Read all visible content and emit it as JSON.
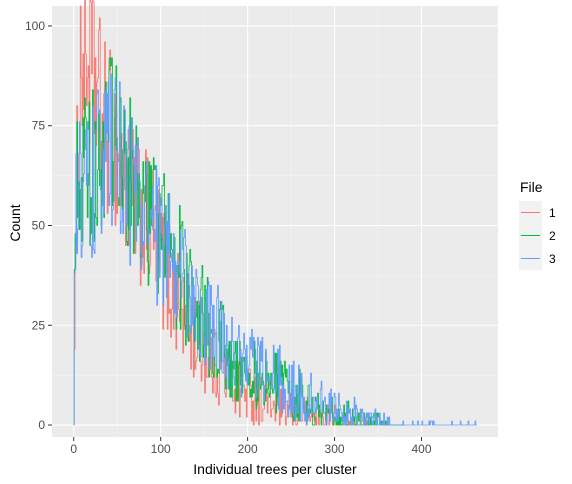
{
  "chart_data": {
    "type": "line",
    "xlabel": "Individual trees per cluster",
    "ylabel": "Count",
    "xlim": [
      -25,
      488
    ],
    "ylim": [
      -3,
      105
    ],
    "xticks": [
      0,
      100,
      200,
      300,
      400
    ],
    "yticks": [
      0,
      25,
      50,
      75,
      100
    ],
    "grid": true,
    "legend": {
      "title": "File",
      "position": "right"
    },
    "series": [
      {
        "name": "1",
        "color": "#F8766D",
        "points": [
          [
            0,
            0
          ],
          [
            1,
            31
          ],
          [
            2,
            40
          ],
          [
            5,
            72
          ],
          [
            8,
            90
          ],
          [
            10,
            94
          ],
          [
            12,
            88
          ],
          [
            15,
            92
          ],
          [
            20,
            88
          ],
          [
            25,
            85
          ],
          [
            30,
            80
          ],
          [
            35,
            75
          ],
          [
            40,
            74
          ],
          [
            45,
            72
          ],
          [
            50,
            67
          ],
          [
            55,
            63
          ],
          [
            60,
            60
          ],
          [
            70,
            55
          ],
          [
            80,
            52
          ],
          [
            90,
            48
          ],
          [
            100,
            42
          ],
          [
            110,
            36
          ],
          [
            120,
            30
          ],
          [
            130,
            26
          ],
          [
            140,
            22
          ],
          [
            150,
            19
          ],
          [
            160,
            16
          ],
          [
            170,
            14
          ],
          [
            180,
            11
          ],
          [
            190,
            9
          ],
          [
            200,
            8
          ],
          [
            210,
            7
          ],
          [
            220,
            6
          ],
          [
            230,
            5
          ],
          [
            240,
            4
          ],
          [
            250,
            4
          ],
          [
            260,
            3
          ],
          [
            270,
            3
          ],
          [
            280,
            2
          ],
          [
            290,
            2
          ],
          [
            300,
            2
          ],
          [
            310,
            1
          ],
          [
            320,
            1
          ],
          [
            330,
            1
          ],
          [
            340,
            0
          ]
        ]
      },
      {
        "name": "2",
        "color": "#00BA38",
        "points": [
          [
            0,
            0
          ],
          [
            1,
            35
          ],
          [
            3,
            62
          ],
          [
            6,
            66
          ],
          [
            10,
            64
          ],
          [
            15,
            62
          ],
          [
            20,
            63
          ],
          [
            25,
            65
          ],
          [
            30,
            66
          ],
          [
            35,
            68
          ],
          [
            40,
            70
          ],
          [
            45,
            71
          ],
          [
            50,
            70
          ],
          [
            55,
            68
          ],
          [
            60,
            65
          ],
          [
            70,
            60
          ],
          [
            80,
            55
          ],
          [
            90,
            52
          ],
          [
            100,
            48
          ],
          [
            110,
            44
          ],
          [
            120,
            40
          ],
          [
            130,
            35
          ],
          [
            140,
            30
          ],
          [
            150,
            26
          ],
          [
            160,
            23
          ],
          [
            170,
            20
          ],
          [
            180,
            17
          ],
          [
            190,
            15
          ],
          [
            200,
            13
          ],
          [
            210,
            12
          ],
          [
            220,
            11
          ],
          [
            230,
            10
          ],
          [
            240,
            9
          ],
          [
            250,
            8
          ],
          [
            260,
            7
          ],
          [
            270,
            5
          ],
          [
            280,
            4
          ],
          [
            290,
            3
          ],
          [
            300,
            3
          ],
          [
            310,
            2
          ],
          [
            320,
            2
          ],
          [
            330,
            1
          ],
          [
            340,
            1
          ],
          [
            350,
            1
          ],
          [
            360,
            0
          ],
          [
            380,
            0
          ]
        ]
      },
      {
        "name": "3",
        "color": "#619CFF",
        "points": [
          [
            0,
            0
          ],
          [
            1,
            32
          ],
          [
            3,
            56
          ],
          [
            6,
            60
          ],
          [
            10,
            60
          ],
          [
            15,
            60
          ],
          [
            20,
            61
          ],
          [
            25,
            63
          ],
          [
            30,
            64
          ],
          [
            35,
            66
          ],
          [
            40,
            67
          ],
          [
            45,
            67
          ],
          [
            50,
            66
          ],
          [
            55,
            64
          ],
          [
            60,
            61
          ],
          [
            70,
            57
          ],
          [
            80,
            53
          ],
          [
            90,
            49
          ],
          [
            100,
            45
          ],
          [
            110,
            42
          ],
          [
            120,
            39
          ],
          [
            130,
            35
          ],
          [
            140,
            31
          ],
          [
            150,
            28
          ],
          [
            160,
            25
          ],
          [
            170,
            22
          ],
          [
            180,
            20
          ],
          [
            190,
            18
          ],
          [
            200,
            16
          ],
          [
            210,
            15
          ],
          [
            220,
            14
          ],
          [
            230,
            12
          ],
          [
            240,
            11
          ],
          [
            250,
            9
          ],
          [
            260,
            8
          ],
          [
            270,
            7
          ],
          [
            280,
            6
          ],
          [
            290,
            5
          ],
          [
            300,
            4
          ],
          [
            310,
            3
          ],
          [
            320,
            3
          ],
          [
            330,
            2
          ],
          [
            340,
            1
          ],
          [
            350,
            1
          ],
          [
            360,
            1
          ],
          [
            370,
            0
          ],
          [
            400,
            0
          ],
          [
            460,
            0
          ],
          [
            462,
            1
          ],
          [
            464,
            0
          ]
        ]
      }
    ]
  }
}
